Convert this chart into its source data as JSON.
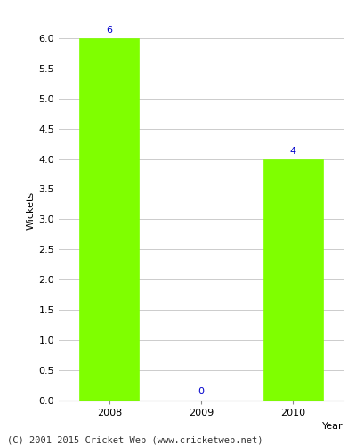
{
  "categories": [
    "2008",
    "2009",
    "2010"
  ],
  "values": [
    6,
    0,
    4
  ],
  "bar_color": "#7FFF00",
  "bar_width": 0.65,
  "xlabel": "Year",
  "ylabel": "Wickets",
  "ylim": [
    0,
    6.3
  ],
  "yticks": [
    0.0,
    0.5,
    1.0,
    1.5,
    2.0,
    2.5,
    3.0,
    3.5,
    4.0,
    4.5,
    5.0,
    5.5,
    6.0
  ],
  "annotation_color": "#0000CC",
  "annotation_fontsize": 8,
  "axis_label_fontsize": 8,
  "tick_fontsize": 8,
  "background_color": "#ffffff",
  "footer_text": "(C) 2001-2015 Cricket Web (www.cricketweb.net)",
  "footer_fontsize": 7.5
}
